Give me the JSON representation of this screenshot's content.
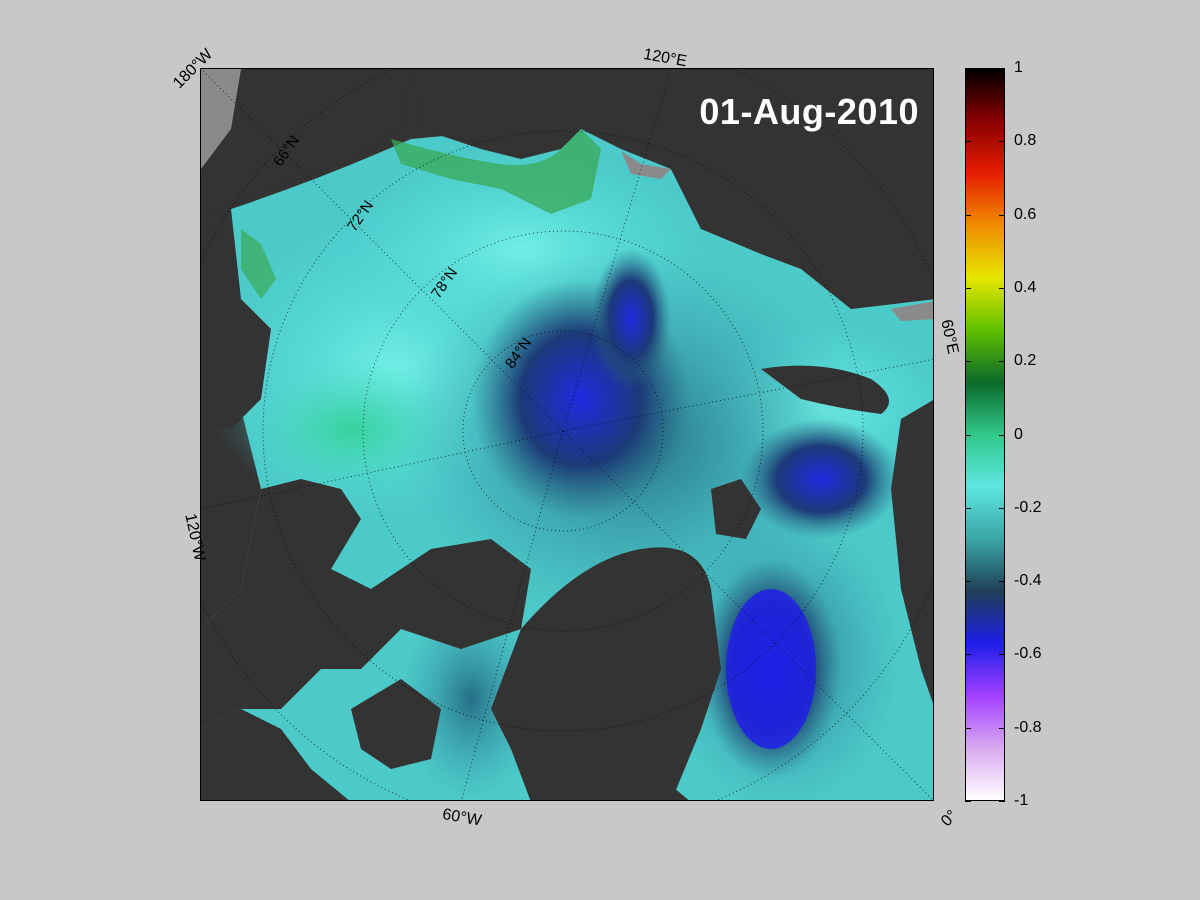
{
  "map": {
    "date": "01-Aug-2010",
    "longitude_labels": [
      "180°W",
      "120°E",
      "60°E",
      "0°",
      "60°W",
      "120°W"
    ],
    "latitude_labels": [
      "66°N",
      "72°N",
      "78°N",
      "84°N"
    ]
  },
  "colorbar": {
    "ticks": [
      "1",
      "0.8",
      "0.6",
      "0.4",
      "0.2",
      "0",
      "-0.2",
      "-0.4",
      "-0.6",
      "-0.8",
      "-1"
    ],
    "range": [
      -1,
      1
    ],
    "colormap": [
      "#ffffff",
      "#d9a8f0",
      "#a040ff",
      "#1e1ee8",
      "#1f3f55",
      "#3aa6a6",
      "#5ee6e0",
      "#30c88a",
      "#0a6a2a",
      "#60c000",
      "#e6e600",
      "#f08c00",
      "#e61e00",
      "#8a0000",
      "#000000"
    ]
  },
  "colors": {
    "background": "#c8c8c8",
    "land": "#333333",
    "ice_shelf": "#8a8a8a"
  }
}
